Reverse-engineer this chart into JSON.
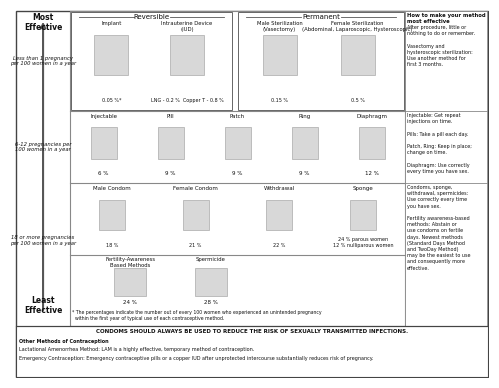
{
  "most_effective_label": "Most\nEffective",
  "least_effective_label": "Least\nEffective",
  "row1": {
    "header_reversible": "Reversible",
    "header_permanent": "Permanent",
    "methods": [
      "Implant",
      "Intrauterine Device\n(IUD)",
      "Male Sterilization\n(Vasectomy)",
      "Female Sterilization\n(Abdominal, Laparoscopic, Hysteroscopic)"
    ],
    "percentages": [
      "0.05 %*",
      "LNG - 0.2 %  Copper T - 0.8 %",
      "0.15 %",
      "0.5 %"
    ],
    "label_left": "Less than 1 pregnancy\nper 100 women in a year",
    "tip_title": "How to make your method\nmost effective",
    "tip_body": "After procedure, little or\nnothing to do or remember.\n\nVasectomy and\nhysteroscopic sterilization:\nUse another method for\nfirst 3 months."
  },
  "row2": {
    "methods": [
      "Injectable",
      "Pill",
      "Patch",
      "Ring",
      "Diaphragm"
    ],
    "percentages": [
      "6 %",
      "9 %",
      "9 %",
      "9 %",
      "12 %"
    ],
    "label_left": "6-12 pregnancies per\n100 women in a year",
    "tip_body": "Injectable: Get repeat\ninjections on time.\n\nPills: Take a pill each day.\n\nPatch, Ring: Keep in place;\nchange on time.\n\nDiaphragm: Use correctly\nevery time you have sex."
  },
  "row3": {
    "methods": [
      "Male Condom",
      "Female Condom",
      "Withdrawal",
      "Sponge"
    ],
    "percentages": [
      "18 %",
      "21 %",
      "22 %",
      "24 % parous women\n12 % nulliparous women"
    ],
    "label_left": "18 or more pregnancies\nper 100 women in a year",
    "tip_body": "Condoms, sponge,\nwithdrawal, spermicides:\nUse correctly every time\nyou have sex.\n\nFertility awareness-based\nmethods: Abstain or\nuse condoms on fertile\ndays. Newest methods\n(Standard Days Method\nand TwoDay Method)\nmay be the easiest to use\nand consequently more\neffective."
  },
  "row4": {
    "methods": [
      "Fertility-Awareness\nBased Methods",
      "Spermicide"
    ],
    "percentages": [
      "24 %",
      "28 %"
    ]
  },
  "footnote": "* The percentages indicate the number out of every 100 women who experienced an unintended pregnancy\n  within the first year of typical use of each contraceptive method.",
  "bottom_warning": "CONDOMS SHOULD ALWAYS BE USED TO REDUCE THE RISK OF SEXUALLY TRANSMITTED INFECTIONS.",
  "bottom_other": "Other Methods of Contraception",
  "bottom_lam": "Lactational Amenorrhea Method: LAM is a highly effective, temporary method of contraception.",
  "bottom_ec": "Emergency Contraception: Emergency contraceptive pills or a copper IUD after unprotected intercourse substantially reduces risk of pregnancy.",
  "grid_color": "#888888",
  "text_color": "#111111",
  "img_color": "#d8d8d8",
  "img_edge": "#999999"
}
